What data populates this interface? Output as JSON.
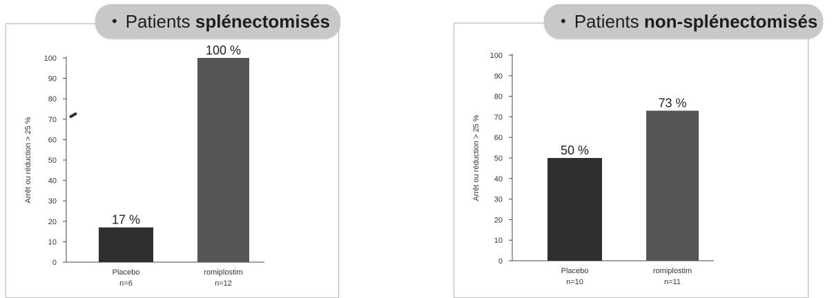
{
  "chart_data": [
    {
      "type": "bar",
      "title_prefix": "Patients",
      "title_bold": "splénectomisés",
      "ylabel": "Arrêt ou réduction > 25 %",
      "ylim": [
        0,
        100
      ],
      "yticks": [
        0,
        10,
        20,
        30,
        40,
        50,
        60,
        70,
        80,
        90,
        100
      ],
      "categories": [
        "Placebo",
        "romiplostim"
      ],
      "category_sub": [
        "n=6",
        "n=12"
      ],
      "values": [
        17,
        100
      ],
      "data_labels": [
        "17 %",
        "100 %"
      ],
      "colors": [
        "#2f2f2f",
        "#555555"
      ],
      "grid": false
    },
    {
      "type": "bar",
      "title_prefix": "Patients",
      "title_bold": "non-splénectomisés",
      "ylabel": "Arrêt ou réduction > 25 %",
      "ylim": [
        0,
        100
      ],
      "yticks": [
        0,
        10,
        20,
        30,
        40,
        50,
        60,
        70,
        80,
        90,
        100
      ],
      "categories": [
        "Placebo",
        "romiplostim"
      ],
      "category_sub": [
        "n=10",
        "n=11"
      ],
      "values": [
        50,
        73
      ],
      "data_labels": [
        "50 %",
        "73 %"
      ],
      "colors": [
        "#2f2f2f",
        "#555555"
      ],
      "grid": false
    }
  ]
}
